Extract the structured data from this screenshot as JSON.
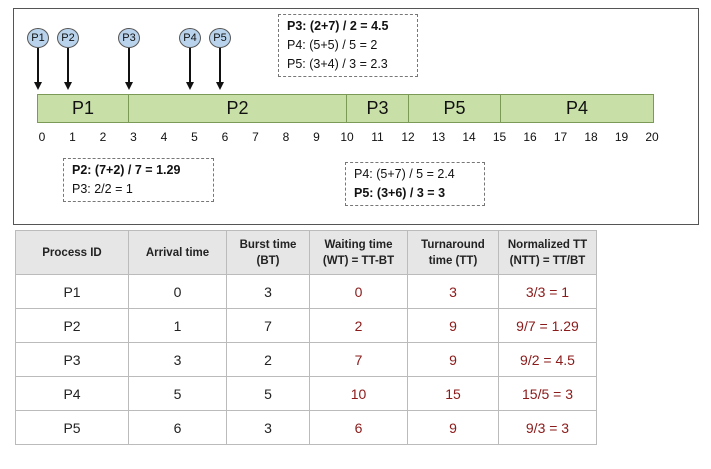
{
  "timeline": {
    "arrivals": [
      {
        "label": "P1",
        "time": 0
      },
      {
        "label": "P2",
        "time": 1
      },
      {
        "label": "P3",
        "time": 3
      },
      {
        "label": "P4",
        "time": 5
      },
      {
        "label": "P5",
        "time": 6
      }
    ],
    "segments": [
      {
        "label": "P1",
        "start": 0,
        "end": 3
      },
      {
        "label": "P2",
        "start": 3,
        "end": 10
      },
      {
        "label": "P3",
        "start": 10,
        "end": 12
      },
      {
        "label": "P5",
        "start": 12,
        "end": 15
      },
      {
        "label": "P4",
        "start": 15,
        "end": 20
      }
    ],
    "ticks": [
      "0",
      "1",
      "2",
      "3",
      "4",
      "5",
      "6",
      "7",
      "8",
      "9",
      "10",
      "11",
      "12",
      "13",
      "14",
      "15",
      "16",
      "17",
      "18",
      "19",
      "20"
    ]
  },
  "notes": {
    "at3": [
      "P2: (7+2) / 7 = 1.29",
      "P3: 2/2 = 1"
    ],
    "at10": [
      "P3: (2+7) / 2 = 4.5",
      "P4: (5+5) / 5 = 2",
      "P5: (3+4) / 3 = 2.3"
    ],
    "at12": [
      "P4: (5+7) / 5 = 2.4",
      "P5: (3+6) / 3 = 3"
    ]
  },
  "table": {
    "headers": [
      "Process ID",
      "Arrival time",
      "Burst time (BT)",
      "Waiting time (WT) = TT-BT",
      "Turnaround time (TT)",
      "Normalized TT (NTT) = TT/BT"
    ],
    "rows": [
      [
        "P1",
        "0",
        "3",
        "0",
        "3",
        "3/3 = 1"
      ],
      [
        "P2",
        "1",
        "7",
        "2",
        "9",
        "9/7 = 1.29"
      ],
      [
        "P3",
        "3",
        "2",
        "7",
        "9",
        "9/2 = 4.5"
      ],
      [
        "P4",
        "5",
        "5",
        "10",
        "15",
        "15/5 = 3"
      ],
      [
        "P5",
        "6",
        "3",
        "6",
        "9",
        "9/3 = 3"
      ]
    ]
  }
}
